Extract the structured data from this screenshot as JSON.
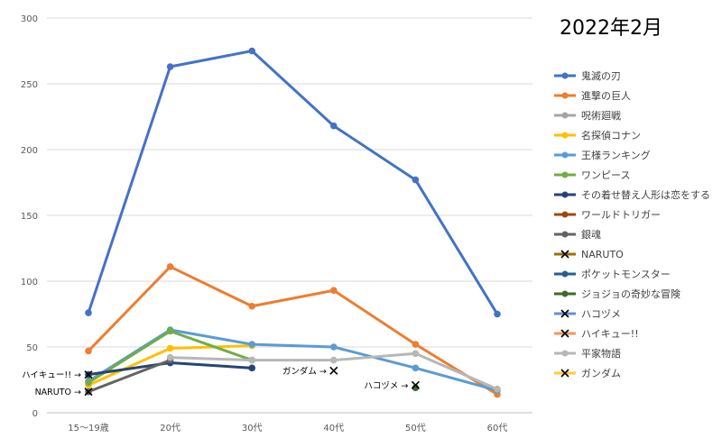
{
  "chart_data": {
    "type": "line",
    "title": "2022年2月",
    "xlabel": "",
    "ylabel": "",
    "categories": [
      "15〜19歳",
      "20代",
      "30代",
      "40代",
      "50代",
      "60代"
    ],
    "ylim": [
      0,
      300
    ],
    "yticks": [
      0,
      50,
      100,
      150,
      200,
      250,
      300
    ],
    "grid": true,
    "legend_position": "right",
    "series": [
      {
        "name": "鬼滅の刃",
        "color": "#4472C4",
        "marker": "circle",
        "values": [
          76,
          263,
          275,
          218,
          177,
          75
        ]
      },
      {
        "name": "進撃の巨人",
        "color": "#ED7D31",
        "marker": "circle",
        "values": [
          47,
          111,
          81,
          93,
          52,
          14
        ]
      },
      {
        "name": "呪術廻戦",
        "color": "#A5A5A5",
        "marker": "circle",
        "values": [
          null,
          null,
          null,
          null,
          null,
          null
        ]
      },
      {
        "name": "名探偵コナン",
        "color": "#FFC000",
        "marker": "circle",
        "values": [
          21,
          49,
          51,
          null,
          null,
          null
        ]
      },
      {
        "name": "王様ランキング",
        "color": "#5B9BD5",
        "marker": "circle",
        "values": [
          24,
          63,
          52,
          50,
          34,
          17
        ]
      },
      {
        "name": "ワンピース",
        "color": "#70AD47",
        "marker": "circle",
        "values": [
          23,
          62,
          40,
          null,
          null,
          null
        ]
      },
      {
        "name": "その着せ替え人形は恋をする",
        "color": "#264478",
        "marker": "circle",
        "values": [
          29,
          38,
          34,
          null,
          null,
          null
        ]
      },
      {
        "name": "ワールドトリガー",
        "color": "#9E480E",
        "marker": "circle",
        "values": [
          null,
          null,
          null,
          null,
          null,
          null
        ]
      },
      {
        "name": "銀魂",
        "color": "#636363",
        "marker": "circle",
        "values": [
          16,
          40,
          null,
          null,
          null,
          null
        ]
      },
      {
        "name": "NARUTO",
        "color": "#997300",
        "marker": "x",
        "values": [
          16,
          null,
          null,
          null,
          null,
          null
        ]
      },
      {
        "name": "ポケットモンスター",
        "color": "#255E91",
        "marker": "circle",
        "values": [
          null,
          null,
          null,
          null,
          null,
          null
        ]
      },
      {
        "name": "ジョジョの奇妙な冒険",
        "color": "#43682B",
        "marker": "circle",
        "values": [
          null,
          null,
          null,
          null,
          19,
          null
        ]
      },
      {
        "name": "ハコヅメ",
        "color": "#698ED0",
        "marker": "x",
        "values": [
          null,
          null,
          null,
          null,
          21,
          null
        ]
      },
      {
        "name": "ハイキュー!!",
        "color": "#F1975A",
        "marker": "x",
        "values": [
          29,
          null,
          null,
          null,
          null,
          null
        ]
      },
      {
        "name": "平家物語",
        "color": "#B7B7B7",
        "marker": "circle",
        "values": [
          null,
          42,
          40,
          40,
          45,
          18
        ]
      },
      {
        "name": "ガンダム",
        "color": "#FFCD33",
        "marker": "x",
        "values": [
          null,
          null,
          null,
          32,
          null,
          null
        ]
      }
    ],
    "annotations": [
      {
        "text": "ハイキュー!! →",
        "category": "15〜19歳",
        "y": 29
      },
      {
        "text": "NARUTO →",
        "category": "15〜19歳",
        "y": 16
      },
      {
        "text": "ガンダム →",
        "category": "40代",
        "y": 32
      },
      {
        "text": "ハコヅメ →",
        "category": "50代",
        "y": 21
      }
    ]
  }
}
